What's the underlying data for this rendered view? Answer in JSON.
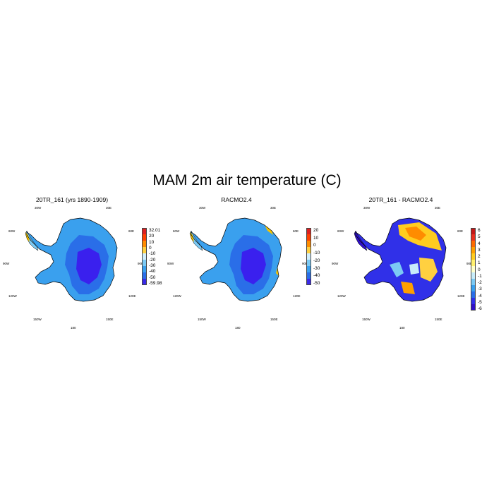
{
  "title": "MAM 2m air temperature (C)",
  "panels": [
    {
      "id": "model",
      "title": "20TR_161 (yrs 1890-1909)",
      "coords": {
        "w30": "30W",
        "e30": "30E",
        "w60": "60W",
        "e60": "60E",
        "w90": "90W",
        "e90": "90E",
        "w120": "120W",
        "e120": "120E",
        "w150": "150W",
        "e150": "150E",
        "s180": "180"
      },
      "colorbar_labels": [
        "32.01",
        "20",
        "10",
        "0",
        "-10",
        "-20",
        "-30",
        "-40",
        "-50",
        "-59.98"
      ],
      "colors": [
        "#dd2020",
        "#ff4000",
        "#ff8c00",
        "#ffd040",
        "#d0eefc",
        "#7ccaf4",
        "#3aa0ee",
        "#2a6ee8",
        "#3a2ae8"
      ],
      "interior_color": "#3a20ee",
      "coast_color": "#f5c400"
    },
    {
      "id": "racmo",
      "title": "RACMO2.4",
      "coords": {
        "w30": "30W",
        "e30": "30E",
        "w60": "60W",
        "e60": "60E",
        "w90": "90W",
        "e90": "90E",
        "w120": "120W",
        "e120": "120E",
        "w150": "150W",
        "e150": "150E",
        "s180": "180"
      },
      "colorbar_labels": [
        "20",
        "10",
        "0",
        "-10",
        "-20",
        "-30",
        "-40",
        "-50"
      ],
      "colors": [
        "#dd2020",
        "#ff4000",
        "#ff8c00",
        "#ffd040",
        "#d0eefc",
        "#7ccaf4",
        "#3aa0ee",
        "#2a6ee8",
        "#3a2ae8"
      ],
      "interior_color": "#3a20ee",
      "coast_color": "#f5c400"
    },
    {
      "id": "diff",
      "title": "20TR_161 - RACMO2.4",
      "coords": {
        "w30": "30W",
        "e30": "30E",
        "w60": "60W",
        "e60": "60E",
        "w90": "90W",
        "e90": "90E",
        "w120": "120W",
        "e120": "120E",
        "w150": "150W",
        "e150": "150E",
        "s180": "180"
      },
      "colorbar_labels": [
        "6",
        "5",
        "4",
        "3",
        "2",
        "1",
        "0",
        "-1",
        "-2",
        "-3",
        "-4",
        "-5",
        "-6"
      ],
      "colors": [
        "#c41818",
        "#e83020",
        "#ff6a00",
        "#ffa000",
        "#ffcc20",
        "#fff070",
        "#ffffcc",
        "#c8ecfa",
        "#7ccaf4",
        "#3aa0ee",
        "#2a6ee8",
        "#3030e8",
        "#3010c8"
      ],
      "interior_color": "#3030e8",
      "coast_color": "#f5c400"
    }
  ]
}
